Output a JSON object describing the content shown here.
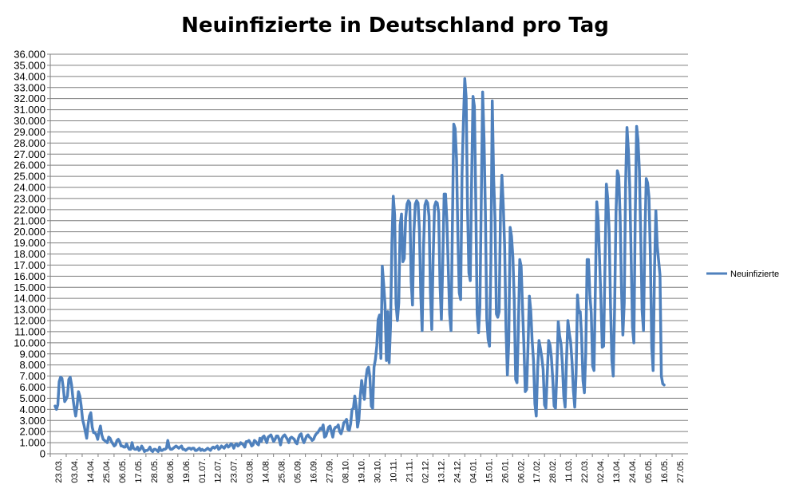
{
  "chart_data": {
    "type": "line",
    "title": "Neuinfizierte in Deutschland pro Tag",
    "xlabel": "",
    "ylabel": "",
    "ylim": [
      0,
      36000
    ],
    "y_ticks": [
      0,
      1000,
      2000,
      3000,
      4000,
      5000,
      6000,
      7000,
      8000,
      9000,
      10000,
      11000,
      12000,
      13000,
      14000,
      15000,
      16000,
      17000,
      18000,
      19000,
      20000,
      21000,
      22000,
      23000,
      24000,
      25000,
      26000,
      27000,
      28000,
      29000,
      30000,
      31000,
      32000,
      33000,
      34000,
      35000,
      36000
    ],
    "y_tick_labels": [
      "0",
      "1.000",
      "2.000",
      "3.000",
      "4.000",
      "5.000",
      "6.000",
      "7.000",
      "8.000",
      "9.000",
      "10.000",
      "11.000",
      "12.000",
      "13.000",
      "14.000",
      "15.000",
      "16.000",
      "17.000",
      "18.000",
      "19.000",
      "20.000",
      "21.000",
      "22.000",
      "23.000",
      "24.000",
      "25.000",
      "26.000",
      "27.000",
      "28.000",
      "29.000",
      "30.000",
      "31.000",
      "32.000",
      "33.000",
      "34.000",
      "35.000",
      "36.000"
    ],
    "x_tick_labels": [
      "23.03.",
      "03.04.",
      "14.04.",
      "25.04.",
      "06.05.",
      "17.05.",
      "28.05.",
      "08.06.",
      "19.06.",
      "01.07.",
      "12.07.",
      "23.07.",
      "03.08.",
      "14.08.",
      "25.08.",
      "05.09.",
      "16.09.",
      "27.09.",
      "08.10.",
      "19.10.",
      "30.10.",
      "10.11.",
      "21.11.",
      "02.12.",
      "13.12.",
      "24.12.",
      "04.01.",
      "15.01.",
      "26.01.",
      "06.02.",
      "17.02.",
      "28.02.",
      "11.03.",
      "22.03.",
      "02.04.",
      "13.04.",
      "24.04.",
      "05.05.",
      "16.05.",
      "27.05."
    ],
    "x_tick_count": 40,
    "grid": true,
    "legend_position": "right",
    "series": [
      {
        "name": "Neuinfizierte",
        "color": "#4f81bd",
        "values": [
          4300,
          4000,
          4400,
          6500,
          6900,
          6800,
          5900,
          4700,
          4900,
          5200,
          6700,
          6900,
          6200,
          5000,
          4100,
          3400,
          4300,
          5600,
          5200,
          4300,
          3100,
          2600,
          2000,
          1400,
          2600,
          3400,
          3700,
          2400,
          1900,
          1900,
          1700,
          1300,
          2000,
          2500,
          1700,
          1300,
          1200,
          1100,
          1000,
          1500,
          1400,
          1100,
          900,
          700,
          800,
          1200,
          1300,
          1100,
          700,
          700,
          600,
          600,
          900,
          600,
          400,
          400,
          1000,
          500,
          400,
          400,
          600,
          300,
          400,
          700,
          500,
          200,
          300,
          300,
          400,
          600,
          300,
          200,
          400,
          400,
          300,
          200,
          600,
          300,
          300,
          400,
          400,
          500,
          1200,
          600,
          400,
          400,
          500,
          600,
          700,
          600,
          500,
          600,
          700,
          400,
          400,
          300,
          400,
          500,
          500,
          400,
          500,
          500,
          300,
          300,
          400,
          500,
          300,
          400,
          300,
          300,
          400,
          500,
          400,
          300,
          500,
          600,
          500,
          600,
          700,
          400,
          500,
          700,
          600,
          500,
          700,
          800,
          600,
          700,
          900,
          800,
          500,
          800,
          900,
          700,
          800,
          1000,
          900,
          800,
          600,
          1100,
          1100,
          1200,
          1000,
          700,
          800,
          1200,
          1100,
          900,
          800,
          1400,
          1100,
          1500,
          1600,
          1300,
          1000,
          1500,
          1600,
          1700,
          1400,
          1100,
          1300,
          1600,
          1600,
          1300,
          800,
          1400,
          1600,
          1700,
          1500,
          1300,
          1000,
          1400,
          1500,
          1400,
          1300,
          1000,
          900,
          1400,
          1700,
          1800,
          1300,
          1000,
          1300,
          1600,
          1700,
          1500,
          1400,
          1200,
          1300,
          1600,
          1800,
          1900,
          2100,
          2300,
          2200,
          2600,
          1500,
          1600,
          2000,
          2400,
          2500,
          2000,
          1500,
          2200,
          2400,
          2400,
          2600,
          2000,
          1800,
          2200,
          2800,
          2900,
          3100,
          2200,
          2100,
          2700,
          4000,
          4100,
          5200,
          4300,
          2400,
          3100,
          5200,
          6600,
          5700,
          4900,
          6700,
          7600,
          7800,
          6900,
          4300,
          4100,
          7800,
          8500,
          9700,
          12100,
          12500,
          8600,
          16900,
          15300,
          13400,
          8400,
          12800,
          8200,
          11500,
          19000,
          23200,
          21500,
          13500,
          12000,
          13600,
          20600,
          21600,
          17300,
          17600,
          21200,
          22500,
          22800,
          22600,
          15500,
          13400,
          19900,
          22500,
          22800,
          22600,
          20200,
          14300,
          11100,
          18600,
          22400,
          22800,
          22600,
          21400,
          14600,
          11200,
          17600,
          22300,
          22700,
          22600,
          21700,
          15200,
          12100,
          17300,
          23400,
          23400,
          21000,
          16700,
          12600,
          11100,
          20500,
          29700,
          29300,
          26600,
          19500,
          14500,
          13900,
          25200,
          29900,
          33800,
          32100,
          22200,
          16300,
          15600,
          24700,
          32200,
          31300,
          22800,
          12600,
          10900,
          13300,
          22800,
          32600,
          28400,
          21800,
          12200,
          10300,
          9700,
          17400,
          31800,
          24800,
          21200,
          12600,
          12300,
          12800,
          21900,
          25100,
          22400,
          18700,
          11200,
          7100,
          10100,
          20400,
          19600,
          17700,
          13800,
          6700,
          6400,
          11400,
          17500,
          16900,
          13200,
          9800,
          5600,
          5800,
          9700,
          14200,
          12900,
          10200,
          8400,
          4500,
          3400,
          7600,
          10200,
          9500,
          8700,
          7600,
          4400,
          4100,
          7100,
          10200,
          9800,
          8700,
          6700,
          4300,
          4100,
          7500,
          11900,
          10600,
          9900,
          8100,
          5200,
          4200,
          8400,
          12000,
          10900,
          10100,
          8300,
          5700,
          4200,
          7300,
          14300,
          12700,
          12800,
          10500,
          6600,
          5500,
          9100,
          17500,
          17500,
          14300,
          12700,
          7900,
          7500,
          15000,
          22700,
          21200,
          17700,
          14000,
          9600,
          9700,
          17000,
          24300,
          23000,
          20100,
          13500,
          8400,
          7000,
          13200,
          21700,
          25500,
          25000,
          21400,
          14800,
          10700,
          13600,
          24400,
          29400,
          27400,
          24000,
          17800,
          11400,
          10000,
          21500,
          29500,
          28300,
          25500,
          19500,
          12900,
          11100,
          19500,
          24800,
          24400,
          23100,
          17800,
          9600,
          7500,
          16500,
          21900,
          18700,
          17400,
          16100,
          7000,
          6300,
          6200
        ]
      }
    ]
  }
}
